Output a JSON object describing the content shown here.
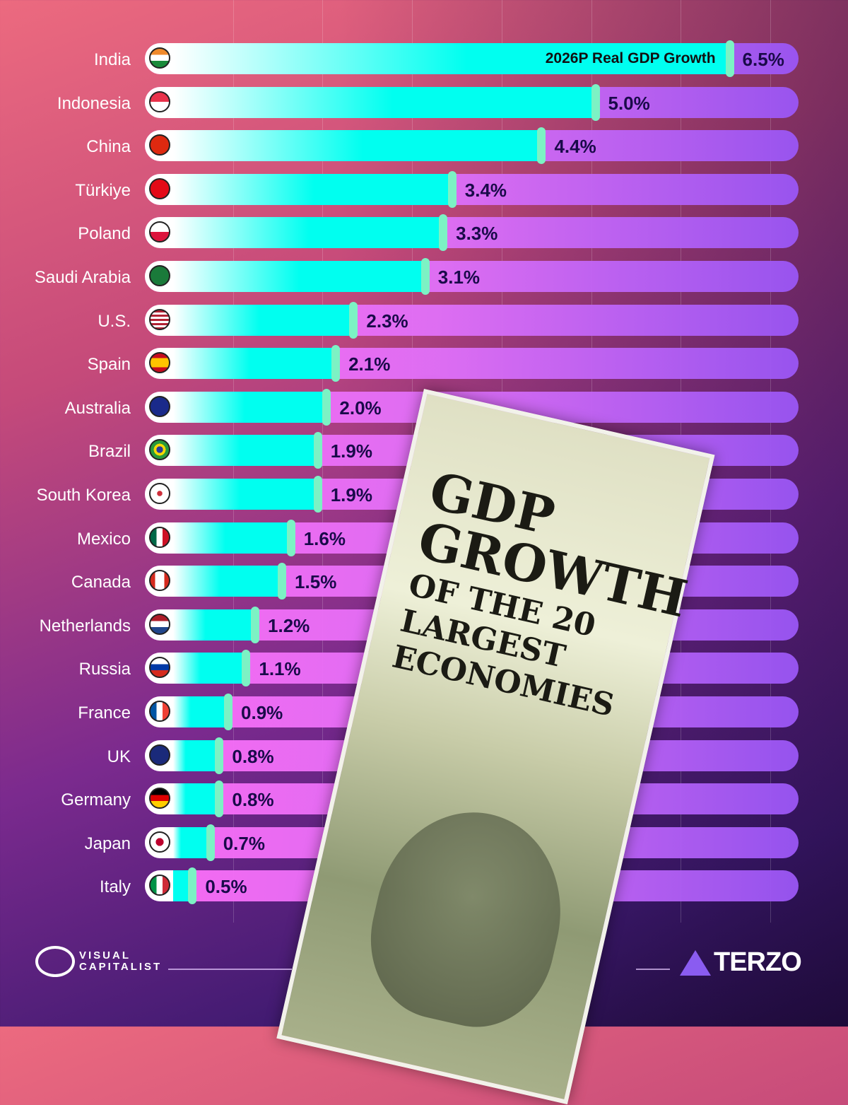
{
  "chart_data": {
    "type": "bar",
    "orientation": "horizontal",
    "title": "GDP GROWTH OF THE 20 LARGEST ECONOMIES",
    "title_lines": [
      "GDP",
      "GROWTH",
      "OF THE 20",
      "LARGEST",
      "ECONOMIES"
    ],
    "legend_label": "2026P Real GDP Growth",
    "categories": [
      "India",
      "Indonesia",
      "China",
      "Türkiye",
      "Poland",
      "Saudi Arabia",
      "U.S.",
      "Spain",
      "Australia",
      "Brazil",
      "South Korea",
      "Mexico",
      "Canada",
      "Netherlands",
      "Russia",
      "France",
      "UK",
      "Germany",
      "Japan",
      "Italy"
    ],
    "values": [
      6.5,
      5.0,
      4.4,
      3.4,
      3.3,
      3.1,
      2.3,
      2.1,
      2.0,
      1.9,
      1.9,
      1.6,
      1.5,
      1.2,
      1.1,
      0.9,
      0.8,
      0.8,
      0.7,
      0.5
    ],
    "value_labels": [
      "6.5%",
      "5.0%",
      "4.4%",
      "3.4%",
      "3.3%",
      "3.1%",
      "2.3%",
      "2.1%",
      "2.0%",
      "1.9%",
      "1.9%",
      "1.6%",
      "1.5%",
      "1.2%",
      "1.1%",
      "0.9%",
      "0.8%",
      "0.8%",
      "0.7%",
      "0.5%"
    ],
    "unit": "%",
    "xlim": [
      0,
      7.3
    ],
    "grid": true,
    "colors": {
      "fill": "#00fff0",
      "marker": "#7cf2c4",
      "track_start": "#ff6ef8",
      "track_end": "#9a56f5",
      "value_text": "#1a0a4a"
    }
  },
  "flags": [
    "india-flag-icon",
    "indonesia-flag-icon",
    "china-flag-icon",
    "turkiye-flag-icon",
    "poland-flag-icon",
    "saudi-arabia-flag-icon",
    "us-flag-icon",
    "spain-flag-icon",
    "australia-flag-icon",
    "brazil-flag-icon",
    "south-korea-flag-icon",
    "mexico-flag-icon",
    "canada-flag-icon",
    "netherlands-flag-icon",
    "russia-flag-icon",
    "france-flag-icon",
    "uk-flag-icon",
    "germany-flag-icon",
    "japan-flag-icon",
    "italy-flag-icon"
  ],
  "footer": {
    "source_logo": "VISUAL CAPITALIST",
    "source_logo_lines": [
      "VISUAL",
      "CAPITALIST"
    ],
    "sponsor_logo": "TERZO"
  }
}
